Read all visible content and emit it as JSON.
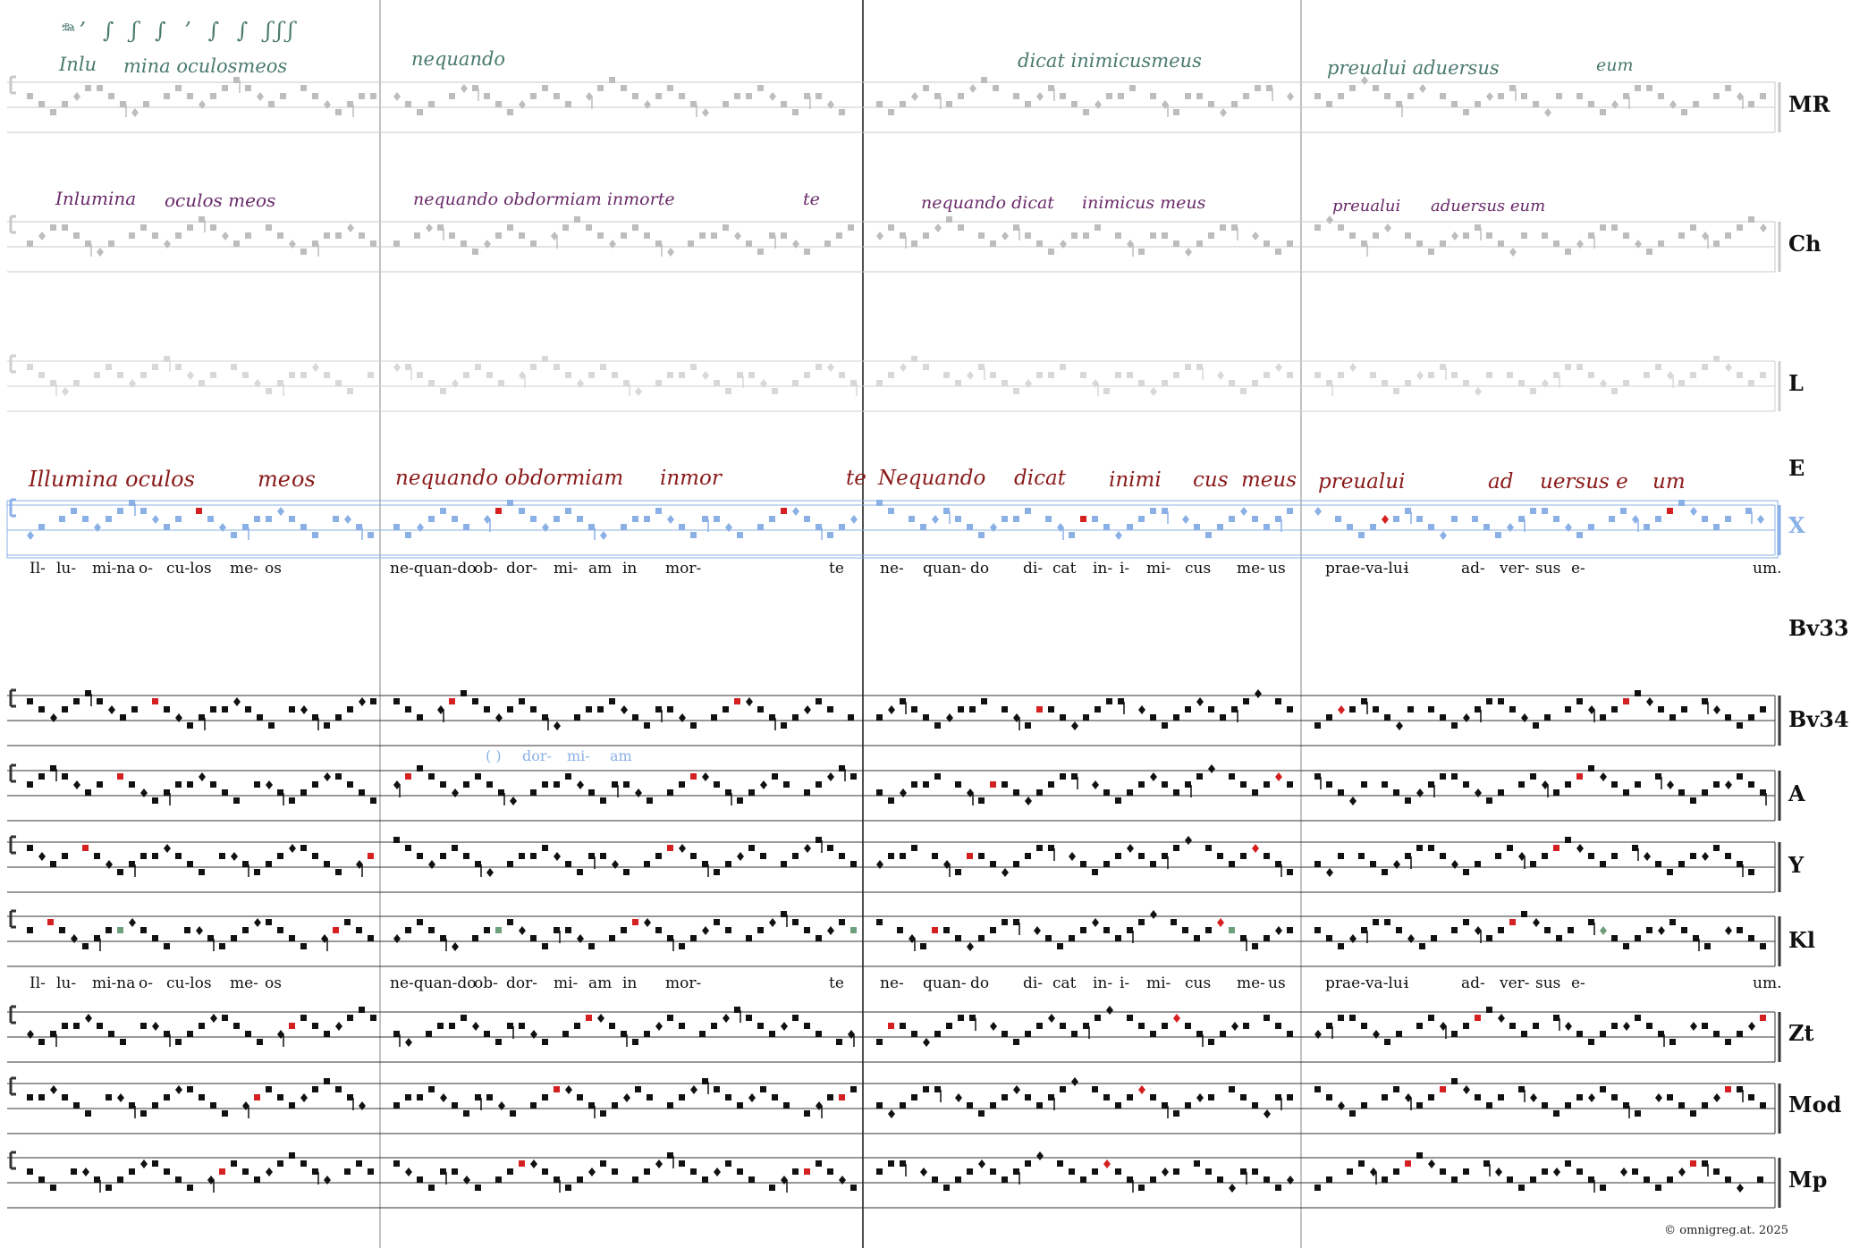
{
  "sigla": [
    "MR",
    "Ch",
    "L",
    "E",
    "X",
    "Bv33",
    "Bv34",
    "A",
    "Y",
    "Kl",
    "Zt",
    "Mod",
    "Mp"
  ],
  "lyrics": [
    "Il-",
    "lu-",
    "mi-na",
    "o-",
    "cu-los",
    "me-",
    "os",
    "ne-quan-do",
    "ob-",
    "dor-",
    "mi-",
    "am",
    "in",
    "mor-",
    "te",
    "ne-",
    "quan-",
    "do",
    "di-",
    "cat",
    "in-",
    "i-",
    "mi-",
    "cus",
    "me-",
    "us",
    "prae-va-lu-",
    "i",
    "ad-",
    "ver-",
    "sus",
    "e-",
    "um."
  ],
  "lyrics_kl": [
    "Il-",
    "lu-",
    "mi-na",
    "o-",
    "cu-los",
    "me-",
    "os",
    "ne-quan-do",
    "ob-",
    "dor-",
    "mi-",
    "am",
    "in",
    "mor-",
    "te",
    "ne-",
    "quan-",
    "do",
    "di-",
    "cat",
    "in-",
    "i-",
    "mi-",
    "cus",
    "me-",
    "us",
    "prae-va-lu-",
    "i",
    "ad-",
    "ver-",
    "sus",
    "e-",
    "um."
  ],
  "bv34_variant": [
    "( )",
    "dor-",
    "mi-",
    "am"
  ],
  "mr_text": [
    "Inlu",
    "mina oculosmeos",
    "nequando",
    "dicat inimicusmeus",
    "preualui aduersus",
    "eum"
  ],
  "ch_text": [
    "Inlumina",
    "oculos meos",
    "nequando obdormiam inmorte",
    "te",
    "nequando dicat",
    "inimicus meus",
    "preualui",
    "aduersus eum"
  ],
  "e_text": [
    "Illumina oculos",
    "me",
    "os",
    "nequando obdormiam",
    "inmor",
    "te",
    "Nequando",
    "dicat",
    "inimi",
    "cus",
    "meus",
    "preualui",
    "ad",
    "uersus e",
    "um"
  ],
  "copyright": "© omnigreg.at. 2025",
  "colors": {
    "red": "#d42020",
    "blue": "#8ab0e6",
    "green": "#6e9e7c",
    "purple": "#6a2b6a",
    "teal": "#4a7a6e",
    "darkred": "#8a1a1a"
  }
}
